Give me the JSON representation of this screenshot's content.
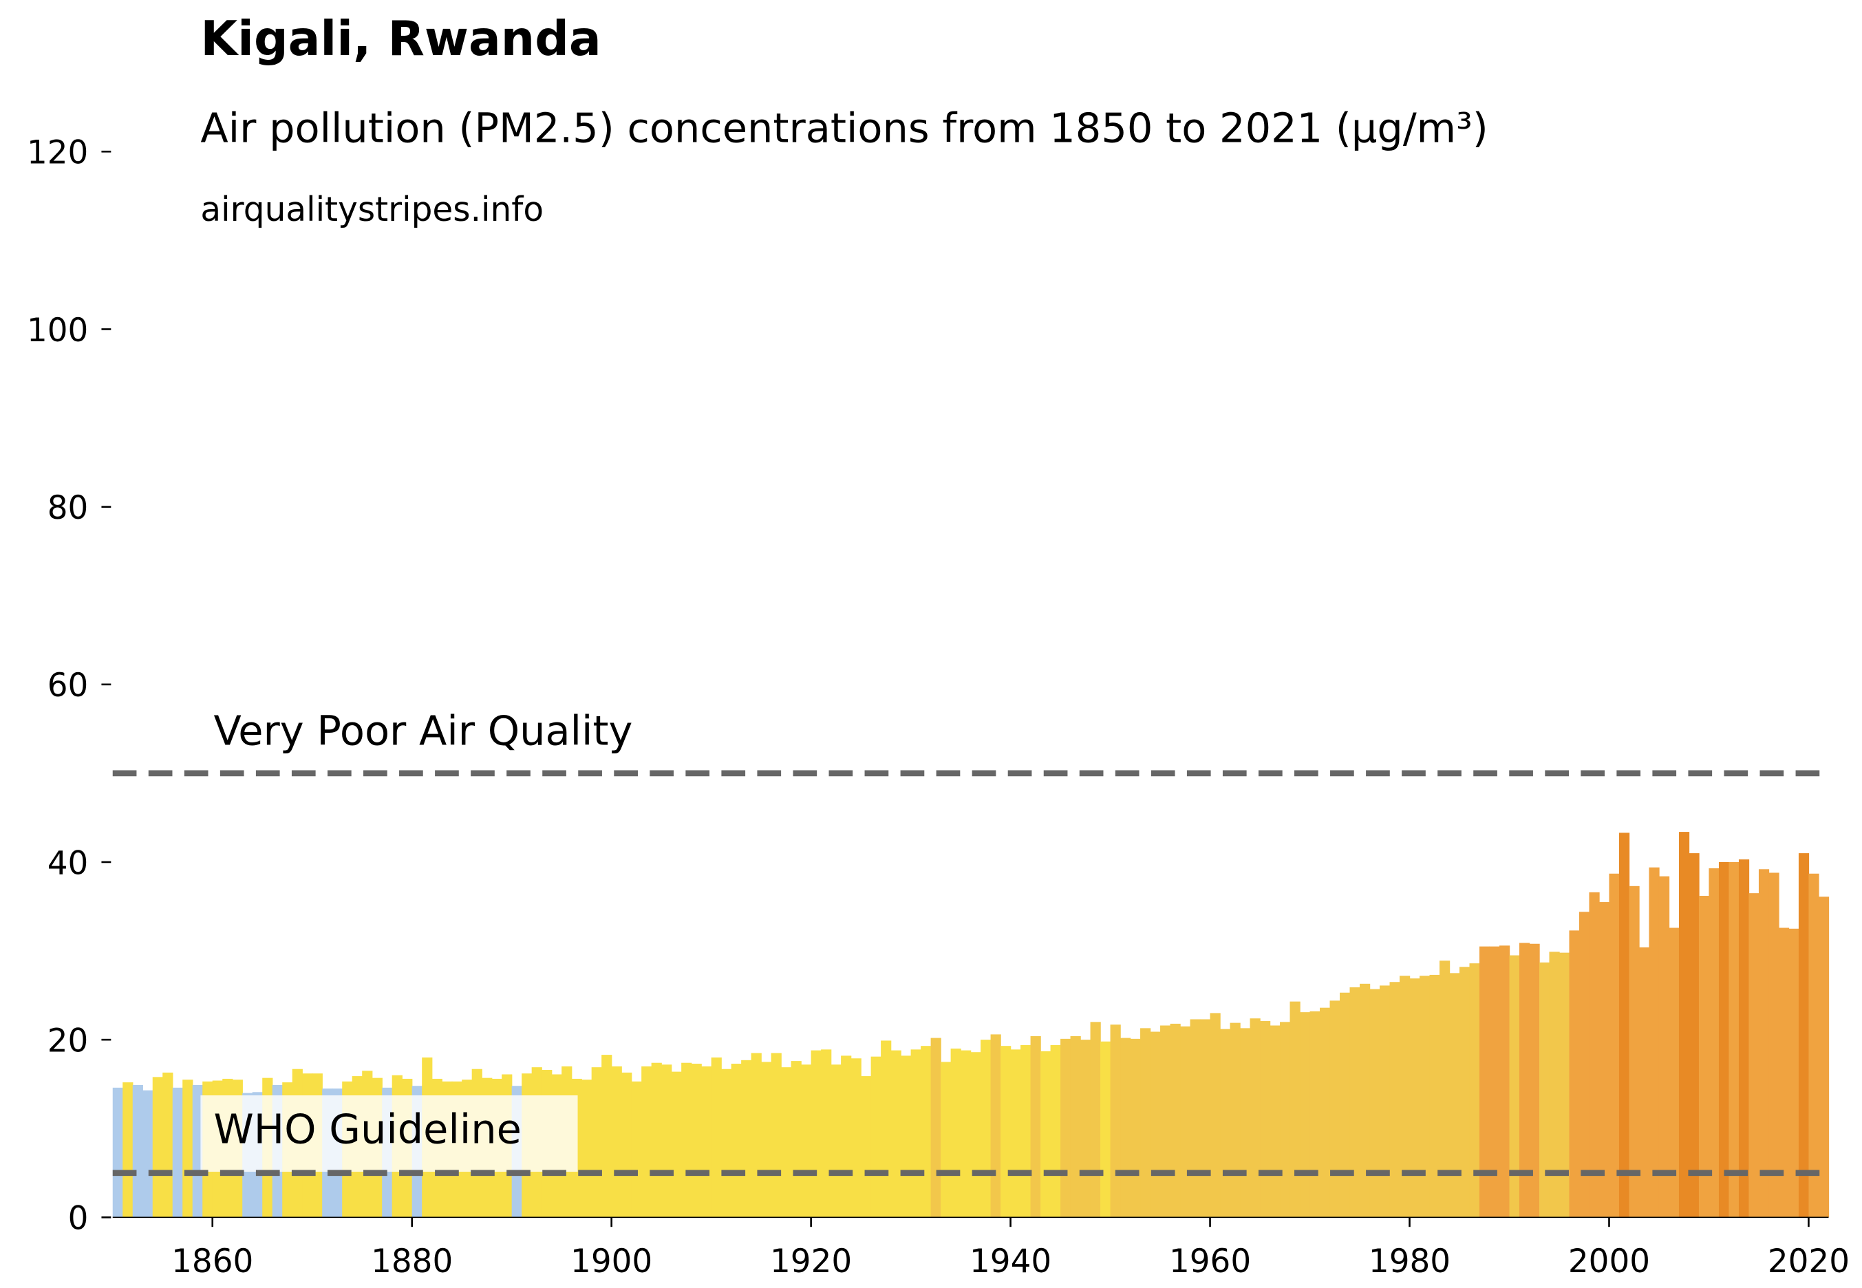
{
  "chart_data": {
    "type": "bar",
    "title": "Kigali, Rwanda",
    "subtitle": "Air pollution (PM2.5) concentrations from 1850 to 2021 (µg/m³)",
    "source": "airqualitystripes.info",
    "x": [
      1850,
      1851,
      1852,
      1853,
      1854,
      1855,
      1856,
      1857,
      1858,
      1859,
      1860,
      1861,
      1862,
      1863,
      1864,
      1865,
      1866,
      1867,
      1868,
      1869,
      1870,
      1871,
      1872,
      1873,
      1874,
      1875,
      1876,
      1877,
      1878,
      1879,
      1880,
      1881,
      1882,
      1883,
      1884,
      1885,
      1886,
      1887,
      1888,
      1889,
      1890,
      1891,
      1892,
      1893,
      1894,
      1895,
      1896,
      1897,
      1898,
      1899,
      1900,
      1901,
      1902,
      1903,
      1904,
      1905,
      1906,
      1907,
      1908,
      1909,
      1910,
      1911,
      1912,
      1913,
      1914,
      1915,
      1916,
      1917,
      1918,
      1919,
      1920,
      1921,
      1922,
      1923,
      1924,
      1925,
      1926,
      1927,
      1928,
      1929,
      1930,
      1931,
      1932,
      1933,
      1934,
      1935,
      1936,
      1937,
      1938,
      1939,
      1940,
      1941,
      1942,
      1943,
      1944,
      1945,
      1946,
      1947,
      1948,
      1949,
      1950,
      1951,
      1952,
      1953,
      1954,
      1955,
      1956,
      1957,
      1958,
      1959,
      1960,
      1961,
      1962,
      1963,
      1964,
      1965,
      1966,
      1967,
      1968,
      1969,
      1970,
      1971,
      1972,
      1973,
      1974,
      1975,
      1976,
      1977,
      1978,
      1979,
      1980,
      1981,
      1982,
      1983,
      1984,
      1985,
      1986,
      1987,
      1988,
      1989,
      1990,
      1991,
      1992,
      1993,
      1994,
      1995,
      1996,
      1997,
      1998,
      1999,
      2000,
      2001,
      2002,
      2003,
      2004,
      2005,
      2006,
      2007,
      2008,
      2009,
      2010,
      2011,
      2012,
      2013,
      2014,
      2015,
      2016,
      2017,
      2018,
      2019,
      2020,
      2021
    ],
    "values": [
      14.6,
      15.2,
      14.9,
      14.3,
      15.8,
      16.3,
      14.6,
      15.5,
      14.9,
      15.3,
      15.4,
      15.6,
      15.5,
      14.0,
      14.1,
      15.7,
      14.9,
      15.2,
      16.7,
      16.2,
      16.2,
      14.5,
      14.5,
      15.3,
      15.9,
      16.5,
      15.7,
      14.6,
      16.0,
      15.6,
      14.8,
      18.0,
      15.6,
      15.3,
      15.3,
      15.5,
      16.7,
      15.7,
      15.6,
      16.1,
      14.8,
      16.2,
      16.9,
      16.6,
      16.1,
      17.0,
      15.6,
      15.5,
      16.9,
      18.3,
      17.0,
      16.3,
      15.3,
      17.0,
      17.4,
      17.2,
      16.4,
      17.4,
      17.3,
      17.0,
      18.0,
      16.7,
      17.3,
      17.7,
      18.5,
      17.5,
      18.5,
      16.9,
      17.6,
      17.2,
      18.8,
      18.9,
      17.2,
      18.2,
      17.9,
      15.9,
      18.1,
      19.9,
      18.8,
      18.2,
      18.9,
      19.3,
      20.2,
      17.5,
      19.0,
      18.8,
      18.6,
      20.0,
      20.6,
      19.3,
      18.9,
      19.4,
      20.4,
      18.7,
      19.4,
      20.1,
      20.4,
      20.0,
      22.0,
      19.8,
      21.7,
      20.2,
      20.1,
      21.3,
      20.9,
      21.6,
      21.8,
      21.5,
      22.3,
      22.3,
      23.0,
      21.2,
      21.9,
      21.3,
      22.4,
      22.1,
      21.6,
      22.0,
      24.3,
      23.1,
      23.2,
      23.6,
      24.4,
      25.3,
      25.9,
      26.3,
      25.7,
      26.1,
      26.5,
      27.2,
      26.9,
      27.2,
      27.3,
      28.9,
      27.5,
      28.2,
      28.6,
      30.5,
      30.5,
      30.6,
      29.5,
      30.9,
      30.8,
      28.7,
      29.9,
      29.8,
      32.3,
      34.4,
      36.6,
      35.5,
      38.7,
      43.3,
      37.3,
      30.4,
      39.4,
      38.4,
      32.6,
      43.4,
      41.0,
      36.2,
      39.3,
      40.0,
      40.0,
      40.3,
      36.5,
      39.2,
      38.8,
      32.6,
      32.5,
      41.0,
      38.7,
      36.1
    ],
    "colors": [
      "#aecbeb",
      "#f8df46",
      "#aecbeb",
      "#aecbeb",
      "#f8df46",
      "#f8df46",
      "#aecbeb",
      "#f8df46",
      "#aecbeb",
      "#f8df46",
      "#f8df46",
      "#f8df46",
      "#f8df46",
      "#aecbeb",
      "#aecbeb",
      "#f8df46",
      "#aecbeb",
      "#f8df46",
      "#f8df46",
      "#f8df46",
      "#f8df46",
      "#aecbeb",
      "#aecbeb",
      "#f8df46",
      "#f8df46",
      "#f8df46",
      "#f8df46",
      "#aecbeb",
      "#f8df46",
      "#f8df46",
      "#aecbeb",
      "#f8df46",
      "#f8df46",
      "#f8df46",
      "#f8df46",
      "#f8df46",
      "#f8df46",
      "#f8df46",
      "#f8df46",
      "#f8df46",
      "#aecbeb",
      "#f8df46",
      "#f8df46",
      "#f8df46",
      "#f8df46",
      "#f8df46",
      "#f8df46",
      "#f8df46",
      "#f8df46",
      "#f8df46",
      "#f8df46",
      "#f8df46",
      "#f8df46",
      "#f8df46",
      "#f8df46",
      "#f8df46",
      "#f8df46",
      "#f8df46",
      "#f8df46",
      "#f8df46",
      "#f8df46",
      "#f8df46",
      "#f8df46",
      "#f8df46",
      "#f8df46",
      "#f8df46",
      "#f8df46",
      "#f8df46",
      "#f8df46",
      "#f8df46",
      "#f8df46",
      "#f8df46",
      "#f8df46",
      "#f8df46",
      "#f8df46",
      "#f8df46",
      "#f8df46",
      "#f8df46",
      "#f8df46",
      "#f8df46",
      "#f8df46",
      "#f8df46",
      "#f2c74b",
      "#f8df46",
      "#f8df46",
      "#f8df46",
      "#f8df46",
      "#f8df46",
      "#f2c74b",
      "#f8df46",
      "#f8df46",
      "#f8df46",
      "#f2c74b",
      "#f8df46",
      "#f8df46",
      "#f2c74b",
      "#f2c74b",
      "#f2c74b",
      "#f2c74b",
      "#f8df46",
      "#f2c74b",
      "#f2c74b",
      "#f2c74b",
      "#f2c74b",
      "#f2c74b",
      "#f2c74b",
      "#f2c74b",
      "#f2c74b",
      "#f2c74b",
      "#f2c74b",
      "#f2c74b",
      "#f2c74b",
      "#f2c74b",
      "#f2c74b",
      "#f2c74b",
      "#f2c74b",
      "#f2c74b",
      "#f2c74b",
      "#f2c74b",
      "#f2c74b",
      "#f2c74b",
      "#f2c74b",
      "#f2c74b",
      "#f2c74b",
      "#f2c74b",
      "#f2c74b",
      "#f2c74b",
      "#f2c74b",
      "#f2c74b",
      "#f2c74b",
      "#f2c74b",
      "#f2c74b",
      "#f2c74b",
      "#f2c74b",
      "#f2c74b",
      "#f2c74b",
      "#f2c74b",
      "#f0a340",
      "#f0a340",
      "#f0a340",
      "#f2c74b",
      "#f0a340",
      "#f0a340",
      "#f2c74b",
      "#f2c74b",
      "#f2c74b",
      "#f0a340",
      "#f0a340",
      "#f0a340",
      "#f0a340",
      "#f0a340",
      "#e88a25",
      "#f0a340",
      "#f0a340",
      "#f0a340",
      "#f0a340",
      "#f0a340",
      "#e88a25",
      "#e88a25",
      "#f0a340",
      "#f0a340",
      "#e88a25",
      "#f0a340",
      "#e88a25",
      "#f0a340",
      "#f0a340",
      "#f0a340",
      "#f0a340",
      "#f0a340",
      "#e88a25",
      "#f0a340",
      "#f0a340"
    ],
    "reference_lines": [
      {
        "label": "Very Poor Air Quality",
        "value": 50
      },
      {
        "label": "WHO Guideline",
        "value": 5
      }
    ],
    "reference_line_color": "#666666",
    "xlim": [
      1850,
      2022
    ],
    "xticks": [
      1860,
      1880,
      1900,
      1920,
      1940,
      1960,
      1980,
      2000,
      2020
    ],
    "ylim": [
      0,
      120
    ],
    "yticks": [
      0,
      20,
      40,
      60,
      80,
      100,
      120
    ]
  }
}
